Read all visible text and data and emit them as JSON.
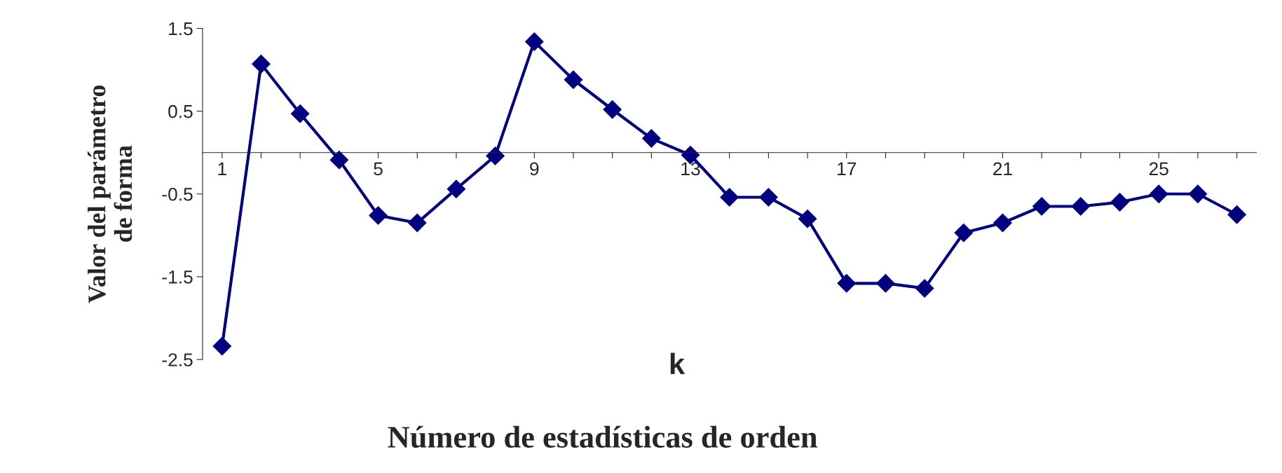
{
  "chart_data": {
    "type": "line",
    "xlabel": "k",
    "ylabel": "Valor del parámetro\nde forma",
    "annotations": [
      "Número de estadísticas de orden"
    ],
    "categories": [
      "1",
      null,
      null,
      null,
      "5",
      null,
      null,
      null,
      "9",
      null,
      null,
      null,
      "13",
      null,
      null,
      null,
      "17",
      null,
      null,
      null,
      "21",
      null,
      null,
      null,
      "25",
      null,
      null
    ],
    "series": [
      {
        "color": "#000080",
        "values": [
          -2.34,
          1.07,
          0.47,
          -0.09,
          -0.76,
          -0.85,
          -0.44,
          -0.04,
          1.34,
          0.88,
          0.52,
          0.17,
          -0.03,
          -0.54,
          -0.54,
          -0.8,
          -1.58,
          -1.58,
          -1.64,
          -0.97,
          -0.85,
          -0.65,
          -0.65,
          -0.6,
          -0.5,
          -0.5,
          -0.75
        ]
      }
    ],
    "ylim": [
      -2.5,
      1.5
    ],
    "yticks": [
      -2.5,
      -1.5,
      -0.5,
      0.5,
      1.5
    ],
    "marker": "diamond",
    "line_style": "solid",
    "grid": false,
    "legend": false
  }
}
